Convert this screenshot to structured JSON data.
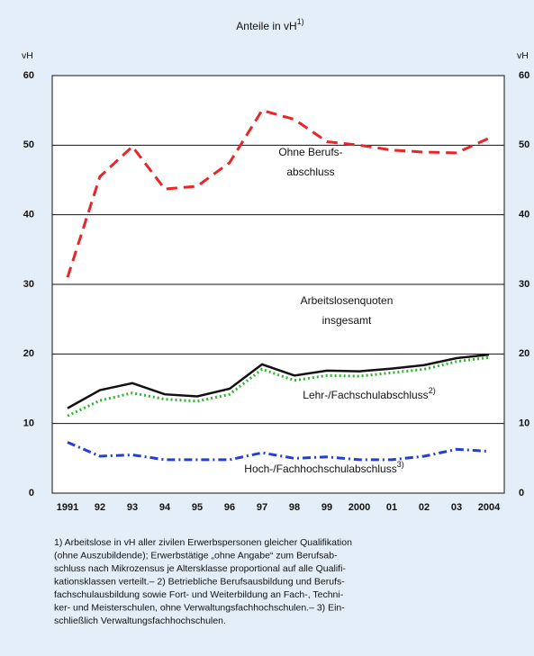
{
  "chart_data": {
    "type": "line",
    "title": "Anteile in vH",
    "title_sup": "1)",
    "y_unit_left": "vH",
    "y_unit_right": "vH",
    "categories": [
      "1991",
      "92",
      "93",
      "94",
      "95",
      "96",
      "97",
      "98",
      "99",
      "2000",
      "01",
      "02",
      "03",
      "2004"
    ],
    "ylim": [
      0,
      60
    ],
    "yticks": [
      0,
      10,
      20,
      30,
      40,
      50,
      60
    ],
    "grid": true,
    "series": [
      {
        "label_lines": [
          "Ohne Berufs-",
          "abschluss"
        ],
        "color": "#e8262a",
        "dash": "dash",
        "values": [
          31,
          45.5,
          49.8,
          43.7,
          44.1,
          47.5,
          55,
          53.7,
          50.5,
          50,
          49.3,
          49,
          48.9,
          51
        ]
      },
      {
        "label_lines": [
          "Arbeitslosenquoten",
          "insgesamt"
        ],
        "color": "#111111",
        "dash": "solid",
        "values": [
          12.2,
          14.8,
          15.8,
          14.2,
          13.9,
          15,
          18.5,
          16.9,
          17.6,
          17.5,
          17.9,
          18.4,
          19.4,
          19.9
        ]
      },
      {
        "label_lines": [
          "Lehr-/Fachschulabschluss"
        ],
        "label_sup": "2)",
        "color": "#2db52d",
        "dash": "dot",
        "values": [
          11.1,
          13.3,
          14.4,
          13.5,
          13.2,
          14.2,
          17.8,
          16.2,
          16.9,
          16.8,
          17.3,
          17.8,
          18.9,
          19.5
        ]
      },
      {
        "label_lines": [
          "Hoch-/Fachhochschulabschluss"
        ],
        "label_sup": "3)",
        "color": "#1f3fd8",
        "dash": "dashdot",
        "values": [
          7.3,
          5.3,
          5.5,
          4.8,
          4.8,
          4.8,
          5.8,
          5,
          5.2,
          4.8,
          4.8,
          5.3,
          6.3,
          6
        ]
      }
    ],
    "footnote": [
      "1) Arbeitslose in vH aller zivilen Erwerbspersonen gleicher Qualifikation",
      "(ohne Auszubildende); Erwerbstätige „ohne Angabe“ zum Berufsab-",
      "schluss nach Mikrozensus je Altersklasse proportional auf alle Qualifi-",
      "kationsklassen verteilt.– 2) Betriebliche Berufsausbildung und Berufs-",
      "fachschulausbildung sowie Fort- und Weiterbildung an Fach-, Techni-",
      "ker- und Meisterschulen, ohne Verwaltungsfachhochschulen.– 3) Ein-",
      "schließlich Verwaltungsfachhochschulen."
    ]
  }
}
